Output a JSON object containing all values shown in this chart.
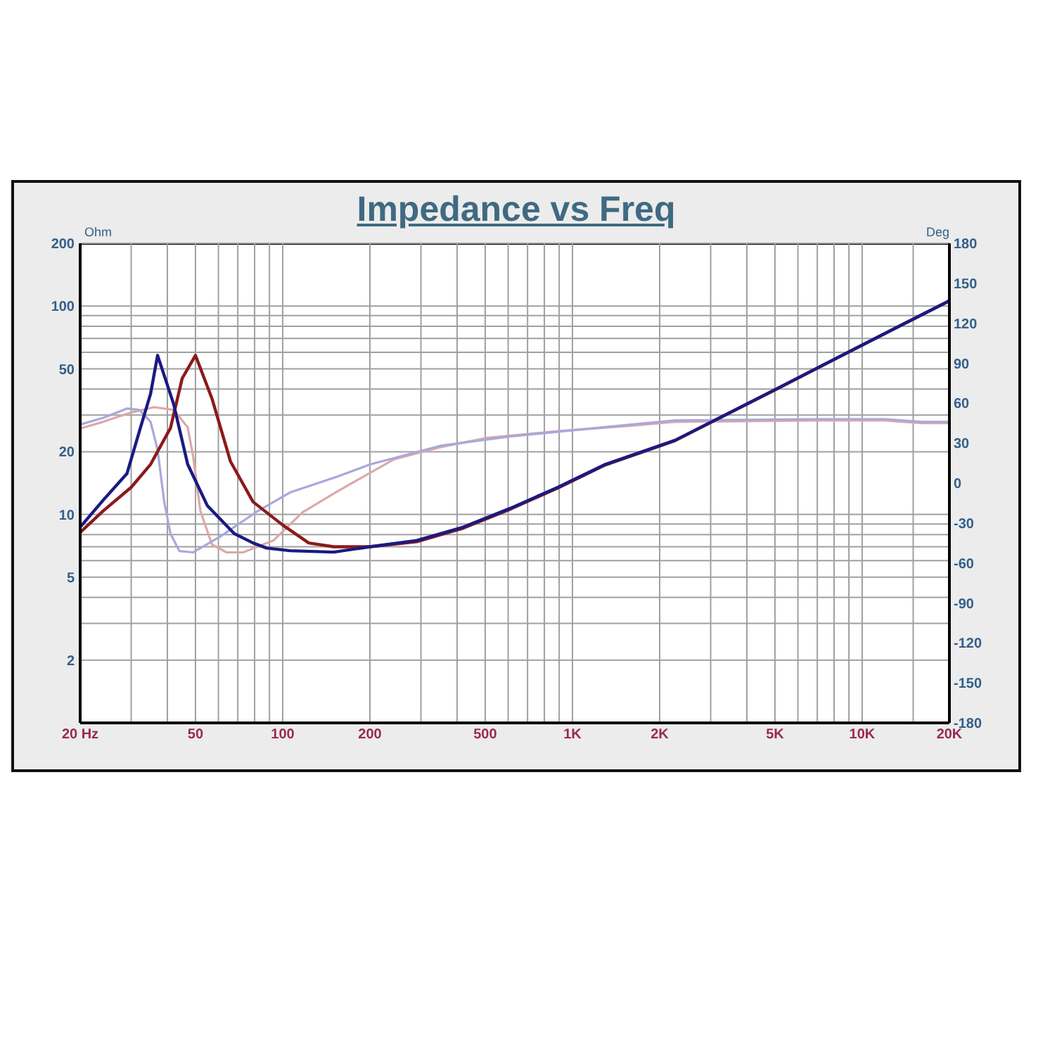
{
  "chart_data": {
    "type": "line",
    "title": "Impedance vs Freq",
    "ylabel": "Ohm",
    "y2label": "Deg",
    "xlim": [
      20,
      20000
    ],
    "xticks": [
      {
        "value": 20,
        "label": "20 Hz"
      },
      {
        "value": 30,
        "label": null
      },
      {
        "value": 40,
        "label": null
      },
      50,
      {
        "value": 60,
        "label": null
      },
      {
        "value": 70,
        "label": null
      },
      {
        "value": 80,
        "label": null
      },
      {
        "value": 90,
        "label": null
      },
      100,
      200,
      {
        "value": 300,
        "label": null
      },
      {
        "value": 400,
        "label": null
      },
      500,
      {
        "value": 600,
        "label": null
      },
      {
        "value": 700,
        "label": null
      },
      {
        "value": 800,
        "label": null
      },
      {
        "value": 900,
        "label": null
      },
      {
        "value": 1000,
        "label": "1K"
      },
      {
        "value": 2000,
        "label": "2K"
      },
      {
        "value": 3000,
        "label": null
      },
      {
        "value": 4000,
        "label": null
      },
      {
        "value": 5000,
        "label": "5K"
      },
      {
        "value": 6000,
        "label": null
      },
      {
        "value": 7000,
        "label": null
      },
      {
        "value": 8000,
        "label": null
      },
      {
        "value": 9000,
        "label": null
      },
      {
        "value": 10000,
        "label": "10K"
      },
      {
        "value": 15000,
        "label": null
      },
      {
        "value": 20000,
        "label": "20K"
      }
    ],
    "ylim": [
      1,
      200
    ],
    "yticks": [
      {
        "value": 1,
        "label": null
      },
      2,
      {
        "value": 3,
        "label": null
      },
      {
        "value": 4,
        "label": null
      },
      5,
      {
        "value": 6,
        "label": null
      },
      {
        "value": 7,
        "label": null
      },
      {
        "value": 8,
        "label": null
      },
      {
        "value": 9,
        "label": null
      },
      10,
      20,
      {
        "value": 30,
        "label": null
      },
      {
        "value": 40,
        "label": null
      },
      50,
      {
        "value": 60,
        "label": null
      },
      {
        "value": 70,
        "label": null
      },
      {
        "value": 80,
        "label": null
      },
      {
        "value": 90,
        "label": null
      },
      100,
      200
    ],
    "y2lim": [
      -180,
      180
    ],
    "y2ticks": [
      -180,
      -150,
      -120,
      -90,
      -60,
      -30,
      0,
      30,
      60,
      90,
      120,
      150,
      180
    ],
    "log": "xy",
    "grid": true,
    "series": [
      {
        "color": "#dca8a8",
        "axis": "y2",
        "x": [
          20,
          24,
          30,
          36,
          42,
          47,
          49,
          52,
          57,
          64,
          73,
          93,
          117,
          155,
          243,
          350,
          508,
          890,
          1570,
          2260,
          7000,
          12000,
          16000,
          20000
        ],
        "values": [
          41,
          46,
          53,
          57,
          55,
          42,
          21,
          -21,
          -46,
          -52,
          -52,
          -43,
          -22,
          -6,
          18,
          27,
          34,
          39,
          43,
          46,
          47,
          47,
          45,
          45
        ]
      },
      {
        "color": "#a8a8dc",
        "axis": "y2",
        "x": [
          20,
          24,
          29,
          32,
          35,
          37,
          39,
          41,
          44,
          49,
          61,
          82,
          106,
          155,
          200,
          350,
          610,
          1290,
          2260,
          7000,
          12000,
          16000,
          20000
        ],
        "values": [
          44,
          49,
          56,
          55,
          46,
          25,
          -14,
          -38,
          -51,
          -52,
          -40,
          -21,
          -7,
          5,
          14,
          28,
          35,
          42,
          47,
          48,
          48,
          46,
          46
        ]
      },
      {
        "color": "#8c1a1a",
        "x": [
          20,
          24,
          30,
          35,
          41,
          45,
          50,
          57,
          66,
          79,
          100,
          123,
          150,
          200,
          290,
          420,
          610,
          890,
          1300,
          2260,
          5000,
          10000,
          20000
        ],
        "values": [
          8.2,
          10.4,
          13.5,
          17.4,
          26,
          45,
          58,
          36,
          18,
          11.5,
          8.9,
          7.3,
          7.0,
          7.0,
          7.4,
          8.6,
          10.6,
          13.4,
          17.3,
          22.6,
          39.6,
          65,
          106
        ]
      },
      {
        "color": "#1a1a82",
        "x": [
          20,
          24,
          29,
          32,
          35,
          37,
          42,
          47,
          55,
          68,
          79,
          88,
          106,
          150,
          200,
          290,
          420,
          610,
          890,
          1300,
          2260,
          5000,
          10000,
          20000
        ],
        "values": [
          8.7,
          11.7,
          15.7,
          25,
          38,
          58,
          34,
          17.4,
          11,
          8.1,
          7.3,
          6.9,
          6.7,
          6.6,
          7.0,
          7.5,
          8.7,
          10.7,
          13.5,
          17.4,
          22.7,
          39.7,
          65,
          106
        ]
      }
    ]
  }
}
